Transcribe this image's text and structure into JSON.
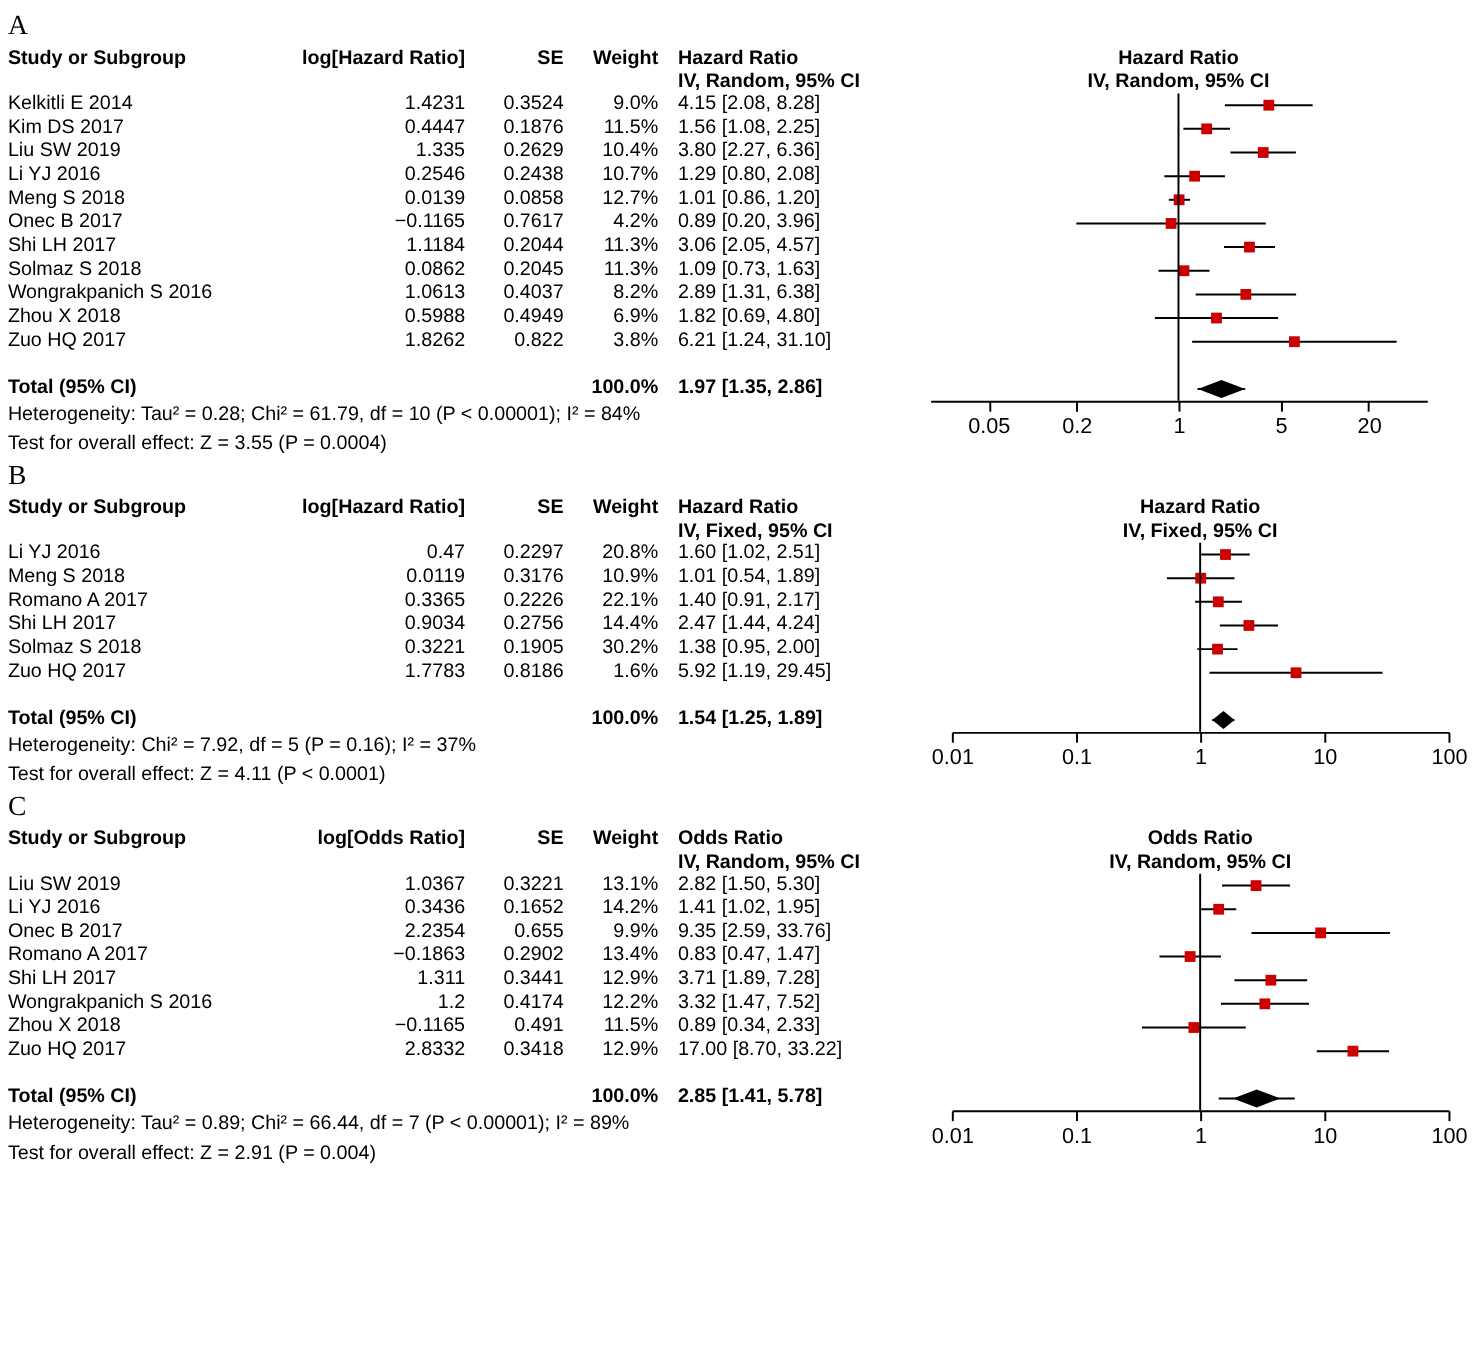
{
  "chart_data": [
    {
      "type": "other",
      "title": "A",
      "ylabel": "Study or Subgroup",
      "categories": [
        "log[Hazard Ratio]",
        "SE",
        "Weight",
        "Hazard Ratio\nIV, Random, 95% CI"
      ],
      "y_categories": [
        "Kelkitli E 2014",
        "Kim DS 2017",
        "Liu SW 2019",
        "Li YJ 2016",
        "Meng S 2018",
        "Onec B 2017",
        "Shi LH 2017",
        "Solmaz S 2018",
        "Wongrakpanich S 2016",
        "Zhou X 2018",
        "Zuo HQ 2017",
        null,
        "Total (95% CI)"
      ],
      "cell_labels": [
        [
          "1.4231",
          "0.3524",
          "9.0%",
          "4.15 [2.08, 8.28]"
        ],
        [
          "0.4447",
          "0.1876",
          "11.5%",
          "1.56 [1.08, 2.25]"
        ],
        [
          "1.335",
          "0.2629",
          "10.4%",
          "3.80 [2.27, 6.36]"
        ],
        [
          "0.2546",
          "0.2438",
          "10.7%",
          "1.29 [0.80, 2.08]"
        ],
        [
          "0.0139",
          "0.0858",
          "12.7%",
          "1.01 [0.86, 1.20]"
        ],
        [
          "−0.1165",
          "0.7617",
          "4.2%",
          "0.89 [0.20, 3.96]"
        ],
        [
          "1.1184",
          "0.2044",
          "11.3%",
          "3.06 [2.05, 4.57]"
        ],
        [
          "0.0862",
          "0.2045",
          "11.3%",
          "1.09 [0.73, 1.63]"
        ],
        [
          "1.0613",
          "0.4037",
          "8.2%",
          "2.89 [1.31, 6.38]"
        ],
        [
          "0.5988",
          "0.4949",
          "6.9%",
          "1.82 [0.69, 4.80]"
        ],
        [
          "1.8262",
          "0.822",
          "3.8%",
          "6.21 [1.24, 31.10]"
        ],
        [
          null,
          null,
          null,
          null
        ],
        [
          null,
          null,
          "100.0%",
          "1.97 [1.35, 2.86]"
        ]
      ],
      "annotations": [
        "Heterogeneity: Tau² = 0.28; Chi² = 61.79, df = 10 (P < 0.00001); I² = 84%",
        "Test for overall effect: Z = 3.55 (P = 0.0004)"
      ]
    },
    {
      "type": "scatter",
      "orientation": "horizontal",
      "title": "Hazard Ratio",
      "subtitle": "IV, Random, 95% CI",
      "log": "x",
      "tick_labels": "x",
      "grid": false,
      "categories": [
        null,
        null,
        null,
        null,
        null,
        null,
        null,
        null,
        null,
        null,
        null,
        null,
        null
      ],
      "xlim": [
        0.02,
        50
      ],
      "xticks": [
        0.05,
        0.2,
        1,
        5,
        20
      ],
      "ref_lines": [
        {
          "axis": "x",
          "value": 1
        }
      ],
      "series": [
        {
          "color": "#cc0000",
          "marker": "square",
          "values": [
            4.15,
            1.56,
            3.8,
            1.29,
            1.01,
            0.89,
            3.06,
            1.09,
            2.89,
            1.82,
            6.21,
            null,
            null
          ],
          "errors": [
            [
              2.08,
              8.28
            ],
            [
              1.08,
              2.25
            ],
            [
              2.27,
              6.36
            ],
            [
              0.8,
              2.08
            ],
            [
              0.86,
              1.2
            ],
            [
              0.2,
              3.96
            ],
            [
              2.05,
              4.57
            ],
            [
              0.73,
              1.63
            ],
            [
              1.31,
              6.38
            ],
            [
              0.69,
              4.8
            ],
            [
              1.24,
              31.1
            ],
            null,
            null
          ]
        },
        {
          "color": "#000000",
          "marker": "diamond",
          "values": [
            null,
            null,
            null,
            null,
            null,
            null,
            null,
            null,
            null,
            null,
            null,
            null,
            1.97
          ],
          "errors": [
            null,
            null,
            null,
            null,
            null,
            null,
            null,
            null,
            null,
            null,
            null,
            null,
            [
              1.35,
              2.86
            ]
          ]
        }
      ]
    },
    {
      "type": "other",
      "title": "B",
      "ylabel": "Study or Subgroup",
      "categories": [
        "log[Hazard Ratio]",
        "SE",
        "Weight",
        "Hazard Ratio\nIV, Fixed, 95% CI"
      ],
      "y_categories": [
        "Li YJ 2016",
        "Meng S 2018",
        "Romano A 2017",
        "Shi LH 2017",
        "Solmaz S 2018",
        "Zuo HQ 2017",
        null,
        "Total (95% CI)"
      ],
      "cell_labels": [
        [
          "0.47",
          "0.2297",
          "20.8%",
          "1.60 [1.02, 2.51]"
        ],
        [
          "0.0119",
          "0.3176",
          "10.9%",
          "1.01 [0.54, 1.89]"
        ],
        [
          "0.3365",
          "0.2226",
          "22.1%",
          "1.40 [0.91, 2.17]"
        ],
        [
          "0.9034",
          "0.2756",
          "14.4%",
          "2.47 [1.44, 4.24]"
        ],
        [
          "0.3221",
          "0.1905",
          "30.2%",
          "1.38 [0.95, 2.00]"
        ],
        [
          "1.7783",
          "0.8186",
          "1.6%",
          "5.92 [1.19, 29.45]"
        ],
        [
          null,
          null,
          null,
          null
        ],
        [
          null,
          null,
          "100.0%",
          "1.54 [1.25, 1.89]"
        ]
      ],
      "annotations": [
        "Heterogeneity: Chi² = 7.92, df = 5 (P = 0.16); I² = 37%",
        "Test for overall effect: Z = 4.11 (P < 0.0001)"
      ]
    },
    {
      "type": "scatter",
      "orientation": "horizontal",
      "title": "Hazard Ratio",
      "subtitle": "IV, Fixed, 95% CI",
      "log": "x",
      "tick_labels": "x",
      "grid": false,
      "categories": [
        null,
        null,
        null,
        null,
        null,
        null,
        null,
        null
      ],
      "xlim": [
        0.01,
        100
      ],
      "xticks": [
        0.01,
        0.1,
        1,
        10,
        100
      ],
      "ref_lines": [
        {
          "axis": "x",
          "value": 1
        }
      ],
      "series": [
        {
          "color": "#cc0000",
          "marker": "square",
          "values": [
            1.6,
            1.01,
            1.4,
            2.47,
            1.38,
            5.92,
            null,
            null
          ],
          "errors": [
            [
              1.02,
              2.51
            ],
            [
              0.54,
              1.89
            ],
            [
              0.91,
              2.17
            ],
            [
              1.44,
              4.24
            ],
            [
              0.95,
              2.0
            ],
            [
              1.19,
              29.45
            ],
            null,
            null
          ]
        },
        {
          "color": "#000000",
          "marker": "diamond",
          "values": [
            null,
            null,
            null,
            null,
            null,
            null,
            null,
            1.54
          ],
          "errors": [
            null,
            null,
            null,
            null,
            null,
            null,
            null,
            [
              1.25,
              1.89
            ]
          ]
        }
      ]
    },
    {
      "type": "other",
      "title": "C",
      "ylabel": "Study or Subgroup",
      "categories": [
        "log[Odds Ratio]",
        "SE",
        "Weight",
        "Odds Ratio\nIV, Random, 95% CI"
      ],
      "y_categories": [
        "Liu SW 2019",
        "Li YJ 2016",
        "Onec B 2017",
        "Romano A 2017",
        "Shi LH 2017",
        "Wongrakpanich S 2016",
        "Zhou X 2018",
        "Zuo HQ 2017",
        null,
        "Total (95% CI)"
      ],
      "cell_labels": [
        [
          "1.0367",
          "0.3221",
          "13.1%",
          "2.82 [1.50, 5.30]"
        ],
        [
          "0.3436",
          "0.1652",
          "14.2%",
          "1.41 [1.02, 1.95]"
        ],
        [
          "2.2354",
          "0.655",
          "9.9%",
          "9.35 [2.59, 33.76]"
        ],
        [
          "−0.1863",
          "0.2902",
          "13.4%",
          "0.83 [0.47, 1.47]"
        ],
        [
          "1.311",
          "0.3441",
          "12.9%",
          "3.71 [1.89, 7.28]"
        ],
        [
          "1.2",
          "0.4174",
          "12.2%",
          "3.32 [1.47, 7.52]"
        ],
        [
          "−0.1165",
          "0.491",
          "11.5%",
          "0.89 [0.34, 2.33]"
        ],
        [
          "2.8332",
          "0.3418",
          "12.9%",
          "17.00 [8.70, 33.22]"
        ],
        [
          null,
          null,
          null,
          null
        ],
        [
          null,
          null,
          "100.0%",
          "2.85 [1.41, 5.78]"
        ]
      ],
      "annotations": [
        "Heterogeneity: Tau² = 0.89; Chi² = 66.44, df = 7 (P < 0.00001); I² = 89%",
        "Test for overall effect: Z = 2.91 (P = 0.004)"
      ]
    },
    {
      "type": "scatter",
      "orientation": "horizontal",
      "title": "Odds Ratio",
      "subtitle": "IV, Random, 95% CI",
      "log": "x",
      "tick_labels": "x",
      "grid": false,
      "categories": [
        null,
        null,
        null,
        null,
        null,
        null,
        null,
        null,
        null,
        null
      ],
      "xlim": [
        0.01,
        100
      ],
      "xticks": [
        0.01,
        0.1,
        1,
        10,
        100
      ],
      "ref_lines": [
        {
          "axis": "x",
          "value": 1
        }
      ],
      "series": [
        {
          "color": "#cc0000",
          "marker": "square",
          "values": [
            2.82,
            1.41,
            9.35,
            0.83,
            3.71,
            3.32,
            0.89,
            17.0,
            null,
            null
          ],
          "errors": [
            [
              1.5,
              5.3
            ],
            [
              1.02,
              1.95
            ],
            [
              2.59,
              33.76
            ],
            [
              0.47,
              1.47
            ],
            [
              1.89,
              7.28
            ],
            [
              1.47,
              7.52
            ],
            [
              0.34,
              2.33
            ],
            [
              8.7,
              33.22
            ],
            null,
            null
          ]
        },
        {
          "color": "#000000",
          "marker": "diamond",
          "values": [
            null,
            null,
            null,
            null,
            null,
            null,
            null,
            null,
            null,
            2.85
          ],
          "errors": [
            null,
            null,
            null,
            null,
            null,
            null,
            null,
            null,
            null,
            [
              1.41,
              5.78
            ]
          ]
        }
      ]
    }
  ]
}
